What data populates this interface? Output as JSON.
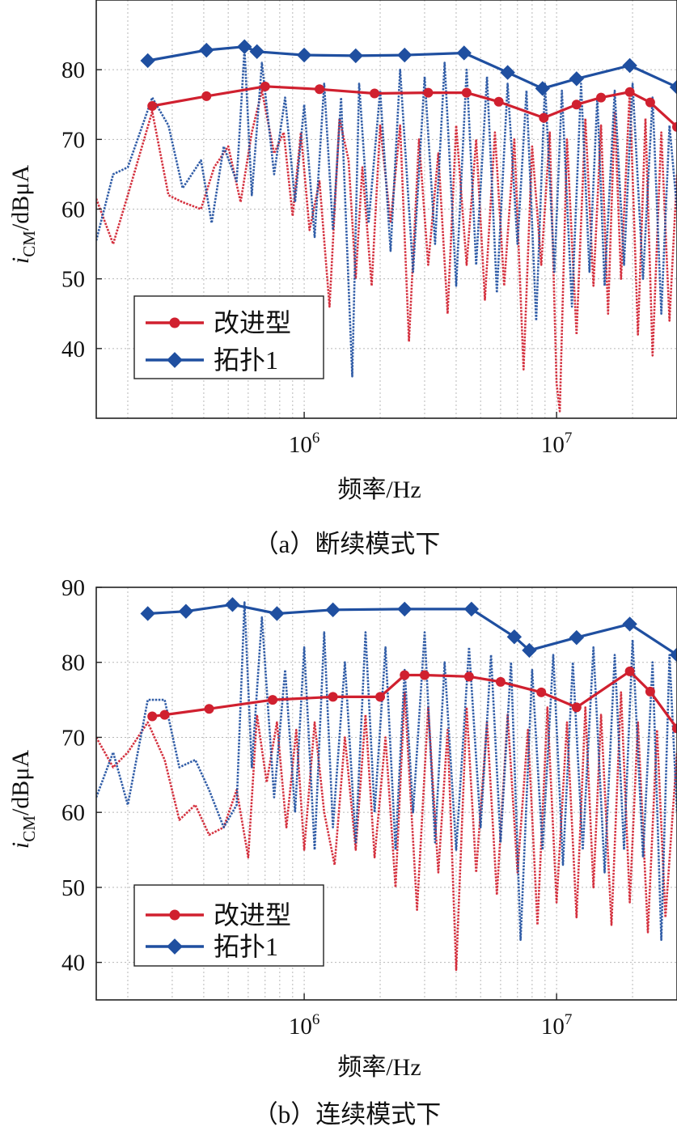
{
  "colors": {
    "red": "#d0202f",
    "blue": "#1f4fa0",
    "grid": "#b8b8b8",
    "axis": "#222222"
  },
  "chart_data": [
    {
      "type": "line",
      "caption": "（a）断续模式下",
      "xlabel": "频率/Hz",
      "ylabel": "i_CM/dBμA",
      "ylabel_main": "i",
      "ylabel_sub": "CM",
      "ylabel_rest": "/dBμA",
      "x_scale": "log",
      "xlim": [
        150000,
        30000000
      ],
      "ylim": [
        30,
        90
      ],
      "xticks": [
        {
          "value": 1000000,
          "base": "10",
          "exp": "6"
        },
        {
          "value": 10000000,
          "base": "10",
          "exp": "7"
        }
      ],
      "yticks": [
        40,
        50,
        60,
        70,
        80
      ],
      "grid": true,
      "legend_position": "bottom-left",
      "series": [
        {
          "name": "改进型",
          "color": "#d0202f",
          "marker": "circle",
          "role": "envelope",
          "x": [
            250000,
            410000,
            700000,
            1150000,
            1900000,
            3100000,
            4400000,
            5900000,
            8900000,
            12000000,
            15000000,
            19500000,
            23500000,
            30000000
          ],
          "y": [
            74.8,
            76.2,
            77.6,
            77.2,
            76.6,
            76.7,
            76.7,
            75.4,
            73.1,
            75.0,
            76.0,
            76.8,
            75.3,
            71.8
          ]
        },
        {
          "name": "拓扑1",
          "color": "#1f4fa0",
          "marker": "diamond",
          "role": "envelope",
          "x": [
            240000,
            410000,
            580000,
            650000,
            1000000,
            1600000,
            2500000,
            4300000,
            6400000,
            8800000,
            12000000,
            19500000,
            30000000
          ],
          "y": [
            81.3,
            82.8,
            83.3,
            82.6,
            82.1,
            82.0,
            82.1,
            82.4,
            79.6,
            77.3,
            78.7,
            80.6,
            77.5
          ]
        },
        {
          "name": "改进型",
          "color": "#d0202f",
          "role": "spectrum",
          "x": [
            150000,
            175000,
            200000,
            250000,
            290000,
            330000,
            390000,
            440000,
            500000,
            560000,
            620000,
            680000,
            760000,
            830000,
            900000,
            970000,
            1050000,
            1150000,
            1260000,
            1380000,
            1500000,
            1600000,
            1700000,
            1850000,
            2000000,
            2200000,
            2400000,
            2600000,
            2850000,
            3100000,
            3400000,
            3700000,
            4000000,
            4400000,
            4800000,
            5200000,
            5700000,
            6200000,
            6800000,
            7400000,
            8000000,
            8700000,
            9400000,
            10000000,
            10300000,
            11000000,
            12000000,
            13000000,
            14000000,
            15000000,
            16000000,
            17000000,
            18000000,
            19500000,
            21000000,
            22500000,
            24000000,
            26000000,
            28000000,
            30000000
          ],
          "y": [
            61.5,
            55,
            62,
            74,
            62,
            61,
            60,
            66,
            69,
            61,
            71,
            77,
            68,
            71,
            59,
            71,
            57,
            64,
            46,
            73,
            67,
            50,
            66,
            49,
            72,
            58,
            72,
            41,
            70,
            52,
            68,
            45,
            72,
            52,
            70,
            47,
            71,
            49,
            70,
            37,
            69,
            52,
            71,
            35,
            31,
            70,
            42,
            73,
            49,
            72,
            45,
            74,
            50,
            77,
            42,
            73,
            39,
            71,
            44,
            65
          ]
        },
        {
          "name": "拓扑1",
          "color": "#1f4fa0",
          "role": "spectrum",
          "x": [
            150000,
            175000,
            200000,
            250000,
            290000,
            330000,
            390000,
            430000,
            480000,
            540000,
            580000,
            620000,
            680000,
            760000,
            840000,
            920000,
            1000000,
            1100000,
            1200000,
            1300000,
            1400000,
            1550000,
            1650000,
            1800000,
            2000000,
            2200000,
            2400000,
            2700000,
            3000000,
            3300000,
            3600000,
            4000000,
            4400000,
            4800000,
            5300000,
            5800000,
            6400000,
            7000000,
            7600000,
            8300000,
            9000000,
            9800000,
            10500000,
            11500000,
            12500000,
            13500000,
            14500000,
            15500000,
            17000000,
            18500000,
            20000000,
            22000000,
            24000000,
            26000000,
            28000000,
            30000000
          ],
          "y": [
            55.5,
            65,
            66,
            76,
            72,
            63,
            67,
            58,
            69,
            64,
            83,
            62,
            81,
            65,
            76,
            61,
            75,
            56,
            78,
            57,
            76,
            36,
            78,
            58,
            77,
            54,
            80,
            51,
            79,
            55,
            81,
            49,
            80,
            52,
            79,
            48,
            78,
            55,
            77,
            44,
            78,
            51,
            77,
            46,
            78,
            51,
            76,
            49,
            77,
            52,
            78,
            50,
            76,
            45,
            72,
            60
          ]
        }
      ]
    },
    {
      "type": "line",
      "caption": "（b）连续模式下",
      "xlabel": "频率/Hz",
      "ylabel": "i_CM/dBμA",
      "ylabel_main": "i",
      "ylabel_sub": "CM",
      "ylabel_rest": "/dBμA",
      "x_scale": "log",
      "xlim": [
        150000,
        30000000
      ],
      "ylim": [
        35,
        90
      ],
      "xticks": [
        {
          "value": 1000000,
          "base": "10",
          "exp": "6"
        },
        {
          "value": 10000000,
          "base": "10",
          "exp": "7"
        }
      ],
      "yticks": [
        40,
        50,
        60,
        70,
        80,
        90
      ],
      "grid": true,
      "legend_position": "bottom-left",
      "series": [
        {
          "name": "改进型",
          "color": "#d0202f",
          "marker": "circle",
          "role": "envelope",
          "x": [
            250000,
            280000,
            420000,
            750000,
            1300000,
            2000000,
            2500000,
            3000000,
            4500000,
            6000000,
            8700000,
            12000000,
            19500000,
            23500000,
            30000000
          ],
          "y": [
            72.8,
            73.0,
            73.8,
            75.0,
            75.4,
            75.4,
            78.3,
            78.3,
            78.1,
            77.4,
            76.0,
            74.0,
            78.8,
            76.1,
            71.2
          ]
        },
        {
          "name": "拓扑1",
          "color": "#1f4fa0",
          "marker": "diamond",
          "role": "envelope",
          "x": [
            240000,
            340000,
            520000,
            780000,
            1300000,
            2500000,
            4600000,
            6800000,
            7800000,
            12000000,
            19500000,
            30000000
          ],
          "y": [
            86.5,
            86.8,
            87.7,
            86.5,
            87.0,
            87.1,
            87.1,
            83.4,
            81.6,
            83.3,
            85.1,
            81.0
          ]
        },
        {
          "name": "改进型",
          "color": "#d0202f",
          "role": "spectrum",
          "x": [
            150000,
            175000,
            200000,
            240000,
            280000,
            320000,
            370000,
            420000,
            480000,
            540000,
            600000,
            650000,
            710000,
            780000,
            850000,
            930000,
            1000000,
            1100000,
            1200000,
            1320000,
            1450000,
            1600000,
            1750000,
            1900000,
            2100000,
            2300000,
            2500000,
            2800000,
            3100000,
            3400000,
            3700000,
            4000000,
            4400000,
            4800000,
            5300000,
            5800000,
            6400000,
            7000000,
            7700000,
            8400000,
            9200000,
            10000000,
            11000000,
            12000000,
            13000000,
            14000000,
            15000000,
            16500000,
            18000000,
            19500000,
            21000000,
            23000000,
            25000000,
            27000000,
            30000000
          ],
          "y": [
            70,
            66,
            68,
            72,
            67,
            59,
            61,
            57,
            58,
            63,
            54,
            73,
            64,
            72,
            58,
            71,
            55,
            72,
            60,
            53,
            70,
            55,
            73,
            54,
            70,
            50,
            76,
            47,
            74,
            52,
            71,
            39,
            74,
            52,
            72,
            49,
            73,
            52,
            71,
            45,
            74,
            48,
            72,
            46,
            74,
            50,
            73,
            45,
            76,
            48,
            72,
            44,
            71,
            46,
            68
          ]
        },
        {
          "name": "拓扑1",
          "color": "#1f4fa0",
          "role": "spectrum",
          "x": [
            150000,
            175000,
            200000,
            240000,
            280000,
            320000,
            370000,
            420000,
            480000,
            540000,
            580000,
            620000,
            680000,
            760000,
            840000,
            920000,
            1000000,
            1100000,
            1200000,
            1300000,
            1450000,
            1600000,
            1750000,
            1900000,
            2100000,
            2300000,
            2500000,
            2700000,
            3000000,
            3300000,
            3600000,
            4000000,
            4500000,
            5000000,
            5500000,
            6000000,
            6600000,
            7200000,
            8000000,
            8800000,
            9700000,
            10600000,
            11600000,
            12700000,
            14000000,
            15500000,
            17000000,
            18500000,
            20000000,
            22000000,
            24000000,
            26000000,
            28000000,
            30000000
          ],
          "y": [
            62,
            68,
            61,
            75,
            75,
            66,
            67,
            63,
            58,
            61,
            88,
            66,
            86,
            62,
            79,
            60,
            82,
            55,
            84,
            58,
            80,
            56,
            84,
            60,
            82,
            55,
            79,
            60,
            84,
            56,
            80,
            55,
            82,
            58,
            81,
            56,
            80,
            43,
            79,
            55,
            81,
            53,
            80,
            55,
            82,
            52,
            81,
            55,
            83,
            54,
            80,
            43,
            81,
            60
          ]
        }
      ]
    }
  ]
}
